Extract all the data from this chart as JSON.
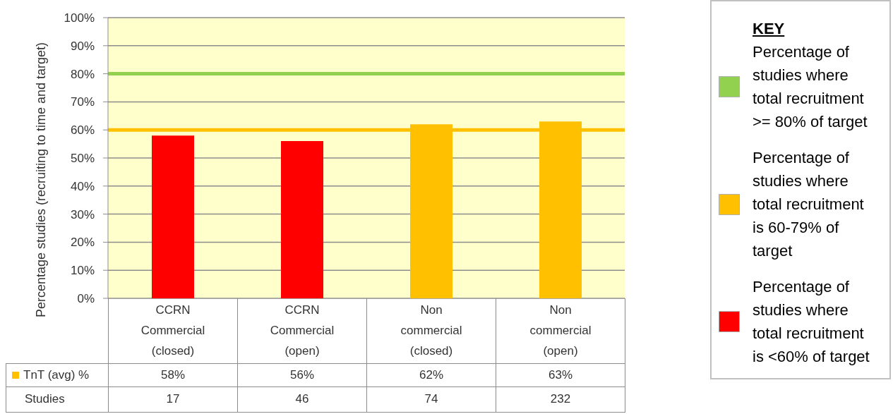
{
  "chart_data": {
    "type": "bar",
    "ylabel": "Percentage studies (recruiting to time and target)",
    "categories": [
      "CCRN Commercial (closed)",
      "CCRN Commercial (open)",
      "Non commercial (closed)",
      "Non commercial (open)"
    ],
    "series": [
      {
        "name": "TnT (avg) %",
        "color": "#ffc000",
        "colors": [
          "#ff0000",
          "#ff0000",
          "#ffc000",
          "#ffc000"
        ],
        "values": [
          58,
          56,
          62,
          63
        ],
        "value_labels": [
          "58%",
          "56%",
          "62%",
          "63%"
        ]
      }
    ],
    "data_labels": true,
    "ylim": [
      0,
      100
    ],
    "yticks": [
      {
        "value": 0,
        "label": "0%"
      },
      {
        "value": 10,
        "label": "10%"
      },
      {
        "value": 20,
        "label": "20%"
      },
      {
        "value": 30,
        "label": "30%"
      },
      {
        "value": 40,
        "label": "40%"
      },
      {
        "value": 50,
        "label": "50%"
      },
      {
        "value": 60,
        "label": "60%"
      },
      {
        "value": 70,
        "label": "70%"
      },
      {
        "value": 80,
        "label": "80%"
      },
      {
        "value": 90,
        "label": "90%"
      },
      {
        "value": 100,
        "label": "100%"
      }
    ],
    "grid": "y",
    "ref_lines": [
      {
        "axis": "y",
        "value": 80,
        "color": "#92d050"
      },
      {
        "axis": "y",
        "value": 60,
        "color": "#ffc000"
      }
    ],
    "legend": "bottom left",
    "legend_title": "KEY",
    "annotations": [
      "Percentage of studies where total recruitment >= 80% of target",
      "Percentage of studies where total recruitment is 60-79% of target",
      "Percentage of studies where total recruitment is <60% of target",
      "Studies",
      "17",
      "46",
      "74",
      "232"
    ]
  }
}
